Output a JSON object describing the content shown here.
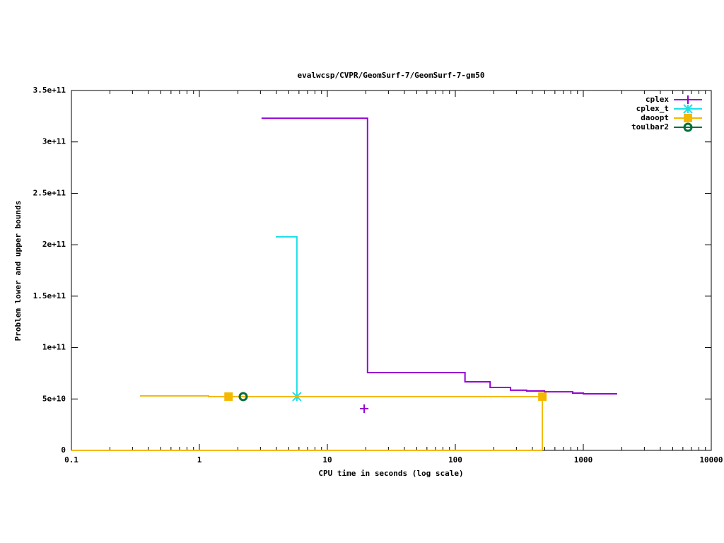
{
  "chart_data": {
    "type": "step",
    "title": "evalwcsp/CVPR/GeomSurf-7/GeomSurf-7-gm50",
    "x_label": "CPU time in seconds (log scale)",
    "y_label": "Problem lower and upper bounds",
    "x_log": true,
    "xlim": [
      0.1,
      10000
    ],
    "xticks": [
      0.1,
      1,
      10,
      100,
      1000,
      10000
    ],
    "ylim": [
      0,
      350000000000
    ],
    "yticks": [
      0,
      {
        "value": 50000000000,
        "label": "5e+10"
      },
      {
        "value": 100000000000,
        "label": "1e+11"
      },
      {
        "value": 150000000000,
        "label": "1.5e+11"
      },
      {
        "value": 200000000000,
        "label": "2e+11"
      },
      {
        "value": 250000000000,
        "label": "2.5e+11"
      },
      {
        "value": 300000000000,
        "label": "3e+11"
      },
      {
        "value": 350000000000,
        "label": "3.5e+11"
      }
    ],
    "legend": "top-right",
    "series": [
      {
        "name": "cplex",
        "color": "#9400d3",
        "marker": "plus",
        "x": [
          3.06,
          20.6,
          119,
          187,
          270,
          361,
          497,
          826,
          1000,
          1840
        ],
        "values": [
          323000000000,
          75600000000,
          66700000000,
          61200000000,
          58500000000,
          57800000000,
          57000000000,
          55700000000,
          55000000000,
          55000000000
        ],
        "marker_x": [
          19.4
        ],
        "marker_values": [
          40600000000
        ]
      },
      {
        "name": "cplex_t",
        "color": "#1ee0e8",
        "marker": "star",
        "x": [
          3.95,
          5.78,
          5.78
        ],
        "values": [
          207700000000,
          52300000000,
          52300000000
        ],
        "marker_x": [
          5.78
        ],
        "marker_values": [
          52300000000
        ]
      },
      {
        "name": "daoopt",
        "color": "#f5b800",
        "marker": "square",
        "x": [
          0.343,
          1.18,
          479,
          479
        ],
        "values": [
          53000000000,
          52300000000,
          52300000000,
          0
        ],
        "lower_x": [
          0.1,
          479
        ],
        "lower_values": [
          0,
          0
        ],
        "marker_x": [
          1.69,
          479
        ],
        "marker_values": [
          52300000000,
          52300000000
        ]
      },
      {
        "name": "toulbar2",
        "color": "#006f3a",
        "marker": "circle",
        "x": [],
        "values": [],
        "marker_x": [
          2.2
        ],
        "marker_values": [
          52300000000
        ]
      }
    ]
  }
}
